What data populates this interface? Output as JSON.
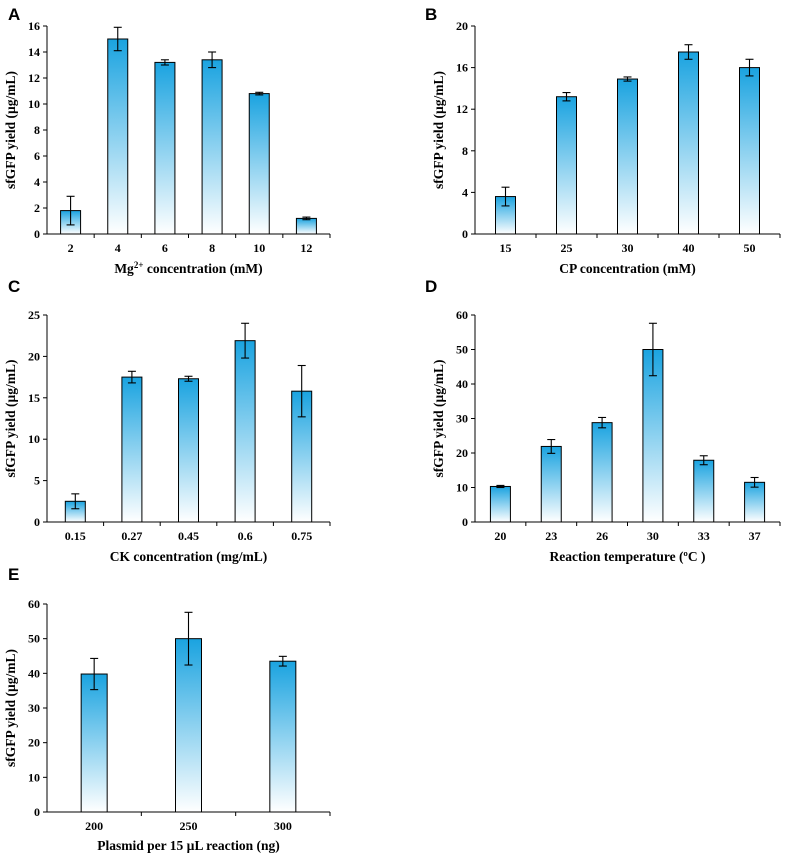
{
  "colors": {
    "bar_top": "#1aa3e0",
    "bar_bottom": "#ffffff",
    "axis": "#000000"
  },
  "chart_data": [
    {
      "panel": "A",
      "type": "bar",
      "categories": [
        "2",
        "4",
        "6",
        "8",
        "10",
        "12"
      ],
      "values": [
        1.8,
        15.0,
        13.2,
        13.4,
        10.8,
        1.2
      ],
      "errors": [
        1.1,
        0.9,
        0.2,
        0.6,
        0.1,
        0.1
      ],
      "xlabel_parts": [
        "Mg",
        "2+",
        " concentration (mM)"
      ],
      "ylabel": "sfGFP yield (µg/mL)",
      "ylim": [
        0,
        16
      ],
      "yticks": [
        0,
        2,
        4,
        6,
        8,
        10,
        12,
        14,
        16
      ]
    },
    {
      "panel": "B",
      "type": "bar",
      "categories": [
        "15",
        "25",
        "30",
        "40",
        "50"
      ],
      "values": [
        3.6,
        13.2,
        14.9,
        17.5,
        16.0
      ],
      "errors": [
        0.9,
        0.4,
        0.2,
        0.7,
        0.8
      ],
      "xlabel": "CP concentration (mM)",
      "ylabel": "sfGFP yield (µg/mL)",
      "ylim": [
        0,
        20
      ],
      "yticks": [
        0,
        4,
        8,
        12,
        16,
        20
      ]
    },
    {
      "panel": "C",
      "type": "bar",
      "categories": [
        "0.15",
        "0.27",
        "0.45",
        "0.6",
        "0.75"
      ],
      "values": [
        2.5,
        17.5,
        17.3,
        21.9,
        15.8
      ],
      "errors": [
        0.9,
        0.7,
        0.3,
        2.1,
        3.1
      ],
      "xlabel": "CK concentration (mg/mL)",
      "ylabel": "sfGFP yield (µg/mL)",
      "ylim": [
        0,
        25
      ],
      "yticks": [
        0,
        5,
        10,
        15,
        20,
        25
      ]
    },
    {
      "panel": "D",
      "type": "bar",
      "categories": [
        "20",
        "23",
        "26",
        "30",
        "33",
        "37"
      ],
      "values": [
        10.3,
        21.9,
        28.8,
        50.0,
        17.9,
        11.5
      ],
      "errors": [
        0.3,
        2.0,
        1.5,
        7.6,
        1.3,
        1.4
      ],
      "xlabel": "Reaction temperature (ºC )",
      "ylabel": "sfGFP yield (µg/mL)",
      "ylim": [
        0,
        60
      ],
      "yticks": [
        0,
        10,
        20,
        30,
        40,
        50,
        60
      ]
    },
    {
      "panel": "E",
      "type": "bar",
      "categories": [
        "200",
        "250",
        "300"
      ],
      "values": [
        39.8,
        50.0,
        43.5
      ],
      "errors": [
        4.5,
        7.6,
        1.4
      ],
      "xlabel": "Plasmid per 15 µL reaction (ng)",
      "ylabel": "sfGFP yield (µg/mL)",
      "ylim": [
        0,
        60
      ],
      "yticks": [
        0,
        10,
        20,
        30,
        40,
        50,
        60
      ]
    }
  ]
}
